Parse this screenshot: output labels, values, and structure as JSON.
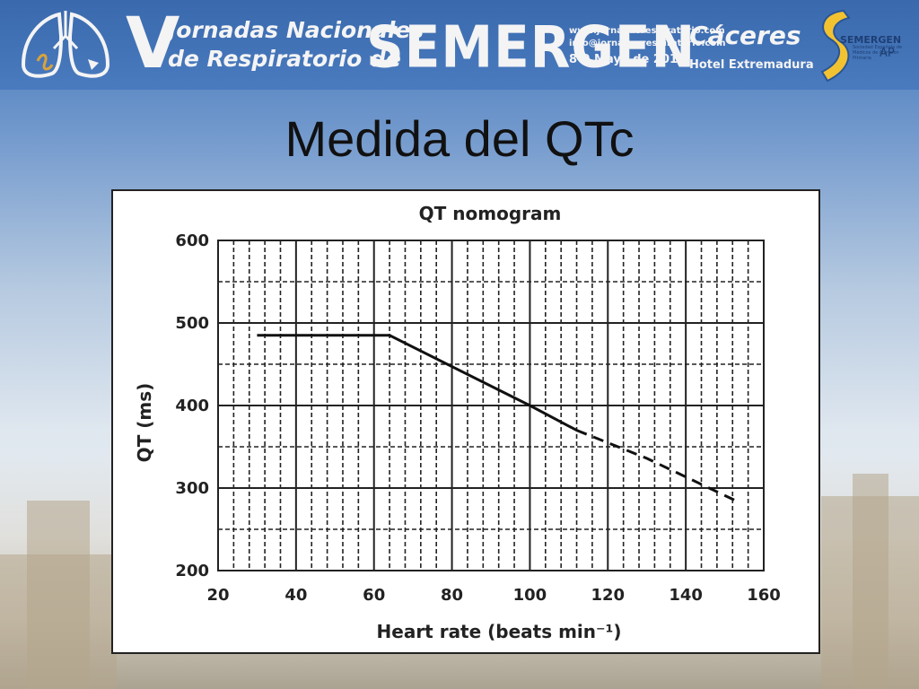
{
  "header": {
    "edition": "V",
    "event_line1": "Jornadas Nacionales",
    "event_line2": "de Respiratorio de",
    "org": "SEMERGEN",
    "web": "www.jornadasrespiratorio.com",
    "email": "info@jornadasrespiratorio.com",
    "dates": "8-9 Mayo de 2015",
    "city": "Cáceres",
    "venue": "Hotel Extremadura",
    "logo_name": "SEMERGEN",
    "logo_sub": "Sociedad Española de Médicos de Atención Primaria",
    "logo_tag": "AP",
    "left_logo_icon": "lungs-icon",
    "accent_color": "#3a69ad"
  },
  "slide": {
    "title": "Medida del QTc"
  },
  "chart_data": {
    "type": "line",
    "title": "QT nomogram",
    "xlabel": "Heart rate (beats min⁻¹)",
    "ylabel": "QT (ms)",
    "xlim": [
      20,
      160
    ],
    "ylim": [
      200,
      600
    ],
    "x_ticks": [
      20,
      40,
      60,
      80,
      100,
      120,
      140,
      160
    ],
    "y_ticks": [
      200,
      300,
      400,
      500,
      600
    ],
    "grid": true,
    "series": [
      {
        "style": "solid",
        "x": [
          30,
          64,
          100,
          112
        ],
        "y": [
          485,
          485,
          400,
          370
        ]
      },
      {
        "style": "dashed",
        "x": [
          112,
          130,
          154
        ],
        "y": [
          370,
          336,
          282
        ]
      }
    ]
  }
}
